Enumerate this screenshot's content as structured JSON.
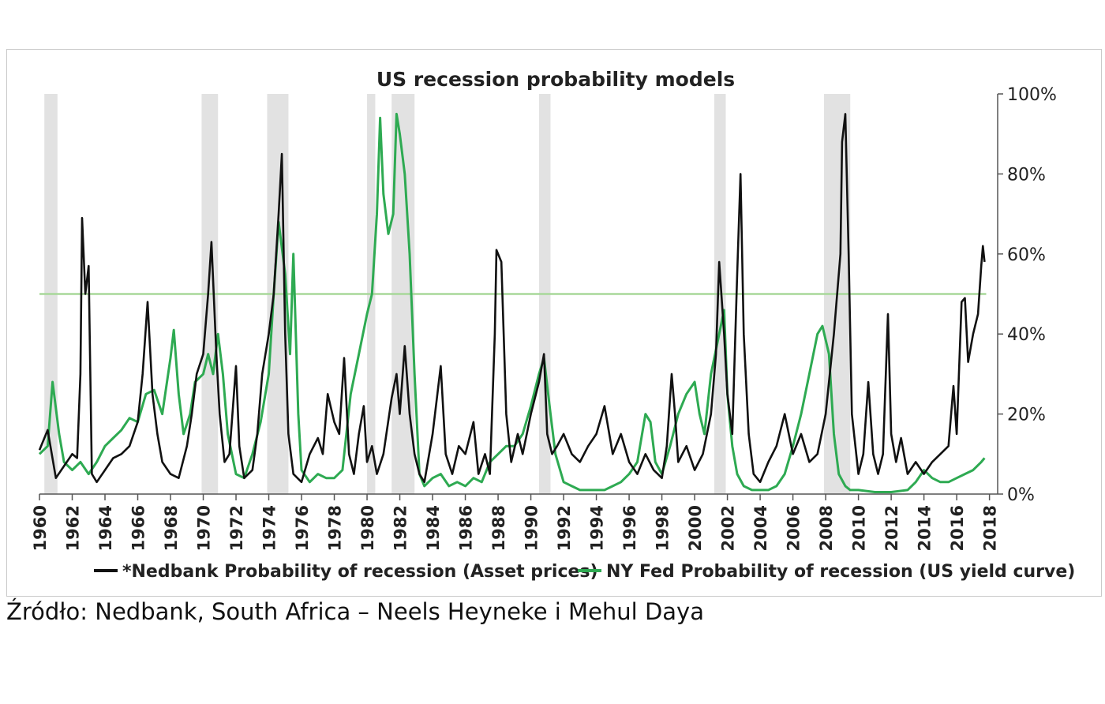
{
  "source_text": "Źródło: Nedbank, South Africa – Neels Heyneke i Mehul Daya",
  "chart_data": {
    "type": "line",
    "title": "US recession probability models",
    "xlabel": "",
    "ylabel": "",
    "xlim": [
      1960,
      2018.5
    ],
    "ylim": [
      0,
      100
    ],
    "y_ticks": [
      0,
      20,
      40,
      60,
      80,
      100
    ],
    "y_tick_labels": [
      "0%",
      "20%",
      "40%",
      "60%",
      "80%",
      "100%"
    ],
    "x_tick_labels": [
      "1960",
      "1962",
      "1964",
      "1966",
      "1968",
      "1970",
      "1972",
      "1974",
      "1976",
      "1978",
      "1980",
      "1982",
      "1984",
      "1986",
      "1988",
      "1990",
      "1992",
      "1994",
      "1996",
      "1998",
      "2000",
      "2002",
      "2004",
      "2006",
      "2008",
      "2010",
      "2012",
      "2014",
      "2016",
      "2018"
    ],
    "threshold": 50,
    "legend_position": "bottom",
    "colors": {
      "nedbank": "#111111",
      "nyfed": "#2eaa52",
      "threshold": "#a8d89a",
      "recession": "#e2e2e2",
      "axis": "#555555"
    },
    "recessions": [
      [
        1960.3,
        1961.1
      ],
      [
        1969.9,
        1970.9
      ],
      [
        1973.9,
        1975.2
      ],
      [
        1980.0,
        1980.5
      ],
      [
        1981.5,
        1982.9
      ],
      [
        1990.5,
        1991.2
      ],
      [
        2001.2,
        2001.9
      ],
      [
        2007.9,
        2009.5
      ]
    ],
    "series": [
      {
        "name": "*Nedbank Probability of recession (Asset prices)",
        "color": "#111111",
        "points": [
          [
            1960.0,
            11
          ],
          [
            1960.5,
            16
          ],
          [
            1961.0,
            4
          ],
          [
            1961.5,
            7
          ],
          [
            1962.0,
            10
          ],
          [
            1962.3,
            9
          ],
          [
            1962.5,
            30
          ],
          [
            1962.6,
            69
          ],
          [
            1962.8,
            50
          ],
          [
            1963.0,
            57
          ],
          [
            1963.2,
            5
          ],
          [
            1963.5,
            3
          ],
          [
            1964.0,
            6
          ],
          [
            1964.5,
            9
          ],
          [
            1965.0,
            10
          ],
          [
            1965.5,
            12
          ],
          [
            1966.0,
            18
          ],
          [
            1966.3,
            30
          ],
          [
            1966.6,
            48
          ],
          [
            1966.9,
            25
          ],
          [
            1967.2,
            15
          ],
          [
            1967.5,
            8
          ],
          [
            1968.0,
            5
          ],
          [
            1968.5,
            4
          ],
          [
            1969.0,
            12
          ],
          [
            1969.3,
            20
          ],
          [
            1969.6,
            30
          ],
          [
            1970.0,
            35
          ],
          [
            1970.3,
            50
          ],
          [
            1970.5,
            63
          ],
          [
            1970.8,
            35
          ],
          [
            1971.0,
            20
          ],
          [
            1971.3,
            8
          ],
          [
            1971.6,
            10
          ],
          [
            1972.0,
            32
          ],
          [
            1972.2,
            12
          ],
          [
            1972.5,
            4
          ],
          [
            1973.0,
            6
          ],
          [
            1973.3,
            15
          ],
          [
            1973.6,
            30
          ],
          [
            1974.0,
            40
          ],
          [
            1974.3,
            50
          ],
          [
            1974.6,
            70
          ],
          [
            1974.8,
            85
          ],
          [
            1975.0,
            40
          ],
          [
            1975.2,
            15
          ],
          [
            1975.5,
            5
          ],
          [
            1976.0,
            3
          ],
          [
            1976.5,
            10
          ],
          [
            1977.0,
            14
          ],
          [
            1977.3,
            10
          ],
          [
            1977.6,
            25
          ],
          [
            1978.0,
            18
          ],
          [
            1978.3,
            15
          ],
          [
            1978.6,
            34
          ],
          [
            1978.9,
            10
          ],
          [
            1979.2,
            5
          ],
          [
            1979.5,
            15
          ],
          [
            1979.8,
            22
          ],
          [
            1980.0,
            8
          ],
          [
            1980.3,
            12
          ],
          [
            1980.6,
            5
          ],
          [
            1981.0,
            10
          ],
          [
            1981.5,
            24
          ],
          [
            1981.8,
            30
          ],
          [
            1982.0,
            20
          ],
          [
            1982.3,
            37
          ],
          [
            1982.6,
            20
          ],
          [
            1982.9,
            10
          ],
          [
            1983.2,
            5
          ],
          [
            1983.5,
            3
          ],
          [
            1984.0,
            15
          ],
          [
            1984.5,
            32
          ],
          [
            1984.8,
            10
          ],
          [
            1985.2,
            5
          ],
          [
            1985.6,
            12
          ],
          [
            1986.0,
            10
          ],
          [
            1986.5,
            18
          ],
          [
            1986.8,
            5
          ],
          [
            1987.2,
            10
          ],
          [
            1987.5,
            5
          ],
          [
            1987.8,
            40
          ],
          [
            1987.9,
            61
          ],
          [
            1988.2,
            58
          ],
          [
            1988.5,
            20
          ],
          [
            1988.8,
            8
          ],
          [
            1989.2,
            15
          ],
          [
            1989.5,
            10
          ],
          [
            1990.0,
            20
          ],
          [
            1990.5,
            28
          ],
          [
            1990.8,
            35
          ],
          [
            1991.0,
            15
          ],
          [
            1991.3,
            10
          ],
          [
            1991.6,
            12
          ],
          [
            1992.0,
            15
          ],
          [
            1992.5,
            10
          ],
          [
            1993.0,
            8
          ],
          [
            1993.5,
            12
          ],
          [
            1994.0,
            15
          ],
          [
            1994.5,
            22
          ],
          [
            1995.0,
            10
          ],
          [
            1995.5,
            15
          ],
          [
            1996.0,
            8
          ],
          [
            1996.5,
            5
          ],
          [
            1997.0,
            10
          ],
          [
            1997.5,
            6
          ],
          [
            1998.0,
            4
          ],
          [
            1998.3,
            12
          ],
          [
            1998.6,
            30
          ],
          [
            1998.8,
            20
          ],
          [
            1999.0,
            8
          ],
          [
            1999.5,
            12
          ],
          [
            2000.0,
            6
          ],
          [
            2000.5,
            10
          ],
          [
            2001.0,
            20
          ],
          [
            2001.3,
            35
          ],
          [
            2001.5,
            58
          ],
          [
            2001.8,
            40
          ],
          [
            2002.0,
            25
          ],
          [
            2002.3,
            15
          ],
          [
            2002.6,
            55
          ],
          [
            2002.8,
            80
          ],
          [
            2003.0,
            40
          ],
          [
            2003.3,
            15
          ],
          [
            2003.6,
            5
          ],
          [
            2004.0,
            3
          ],
          [
            2004.5,
            8
          ],
          [
            2005.0,
            12
          ],
          [
            2005.5,
            20
          ],
          [
            2006.0,
            10
          ],
          [
            2006.5,
            15
          ],
          [
            2007.0,
            8
          ],
          [
            2007.5,
            10
          ],
          [
            2008.0,
            20
          ],
          [
            2008.5,
            40
          ],
          [
            2008.9,
            60
          ],
          [
            2009.0,
            88
          ],
          [
            2009.2,
            95
          ],
          [
            2009.4,
            60
          ],
          [
            2009.6,
            20
          ],
          [
            2010.0,
            5
          ],
          [
            2010.3,
            10
          ],
          [
            2010.6,
            28
          ],
          [
            2010.9,
            10
          ],
          [
            2011.2,
            5
          ],
          [
            2011.5,
            10
          ],
          [
            2011.8,
            45
          ],
          [
            2012.0,
            15
          ],
          [
            2012.3,
            8
          ],
          [
            2012.6,
            14
          ],
          [
            2013.0,
            5
          ],
          [
            2013.5,
            8
          ],
          [
            2014.0,
            5
          ],
          [
            2014.5,
            8
          ],
          [
            2015.0,
            10
          ],
          [
            2015.5,
            12
          ],
          [
            2015.8,
            27
          ],
          [
            2016.0,
            15
          ],
          [
            2016.3,
            48
          ],
          [
            2016.5,
            49
          ],
          [
            2016.7,
            33
          ],
          [
            2017.0,
            40
          ],
          [
            2017.3,
            45
          ],
          [
            2017.5,
            57
          ],
          [
            2017.6,
            62
          ],
          [
            2017.7,
            58
          ]
        ]
      },
      {
        "name": "NY Fed Probability of recession (US yield curve)",
        "color": "#2eaa52",
        "points": [
          [
            1960.0,
            10
          ],
          [
            1960.5,
            12
          ],
          [
            1960.8,
            28
          ],
          [
            1961.2,
            15
          ],
          [
            1961.5,
            8
          ],
          [
            1962.0,
            6
          ],
          [
            1962.5,
            8
          ],
          [
            1963.0,
            5
          ],
          [
            1963.5,
            8
          ],
          [
            1964.0,
            12
          ],
          [
            1964.5,
            14
          ],
          [
            1965.0,
            16
          ],
          [
            1965.5,
            19
          ],
          [
            1966.0,
            18
          ],
          [
            1966.5,
            25
          ],
          [
            1967.0,
            26
          ],
          [
            1967.5,
            20
          ],
          [
            1968.0,
            34
          ],
          [
            1968.2,
            41
          ],
          [
            1968.5,
            25
          ],
          [
            1968.8,
            15
          ],
          [
            1969.2,
            20
          ],
          [
            1969.5,
            28
          ],
          [
            1970.0,
            30
          ],
          [
            1970.3,
            35
          ],
          [
            1970.6,
            30
          ],
          [
            1970.9,
            40
          ],
          [
            1971.2,
            30
          ],
          [
            1971.5,
            15
          ],
          [
            1972.0,
            5
          ],
          [
            1972.5,
            4
          ],
          [
            1973.0,
            10
          ],
          [
            1973.5,
            18
          ],
          [
            1974.0,
            30
          ],
          [
            1974.3,
            50
          ],
          [
            1974.6,
            68
          ],
          [
            1975.0,
            55
          ],
          [
            1975.3,
            35
          ],
          [
            1975.5,
            60
          ],
          [
            1975.8,
            20
          ],
          [
            1976.0,
            6
          ],
          [
            1976.5,
            3
          ],
          [
            1977.0,
            5
          ],
          [
            1977.5,
            4
          ],
          [
            1978.0,
            4
          ],
          [
            1978.5,
            6
          ],
          [
            1979.0,
            25
          ],
          [
            1979.5,
            35
          ],
          [
            1980.0,
            45
          ],
          [
            1980.3,
            50
          ],
          [
            1980.6,
            70
          ],
          [
            1980.8,
            94
          ],
          [
            1981.0,
            75
          ],
          [
            1981.3,
            65
          ],
          [
            1981.6,
            70
          ],
          [
            1981.8,
            95
          ],
          [
            1982.0,
            90
          ],
          [
            1982.3,
            80
          ],
          [
            1982.6,
            60
          ],
          [
            1982.9,
            30
          ],
          [
            1983.2,
            5
          ],
          [
            1983.5,
            2
          ],
          [
            1984.0,
            4
          ],
          [
            1984.5,
            5
          ],
          [
            1985.0,
            2
          ],
          [
            1985.5,
            3
          ],
          [
            1986.0,
            2
          ],
          [
            1986.5,
            4
          ],
          [
            1987.0,
            3
          ],
          [
            1987.5,
            8
          ],
          [
            1988.0,
            10
          ],
          [
            1988.5,
            12
          ],
          [
            1989.0,
            12
          ],
          [
            1989.5,
            15
          ],
          [
            1990.0,
            22
          ],
          [
            1990.5,
            30
          ],
          [
            1990.8,
            34
          ],
          [
            1991.2,
            20
          ],
          [
            1991.5,
            10
          ],
          [
            1992.0,
            3
          ],
          [
            1992.5,
            2
          ],
          [
            1993.0,
            1
          ],
          [
            1993.5,
            1
          ],
          [
            1994.0,
            1
          ],
          [
            1994.5,
            1
          ],
          [
            1995.0,
            2
          ],
          [
            1995.5,
            3
          ],
          [
            1996.0,
            5
          ],
          [
            1996.5,
            8
          ],
          [
            1997.0,
            20
          ],
          [
            1997.3,
            18
          ],
          [
            1997.6,
            8
          ],
          [
            1998.0,
            5
          ],
          [
            1998.5,
            12
          ],
          [
            1999.0,
            20
          ],
          [
            1999.5,
            25
          ],
          [
            2000.0,
            28
          ],
          [
            2000.3,
            20
          ],
          [
            2000.6,
            15
          ],
          [
            2001.0,
            30
          ],
          [
            2001.5,
            40
          ],
          [
            2001.8,
            46
          ],
          [
            2002.0,
            25
          ],
          [
            2002.3,
            12
          ],
          [
            2002.6,
            5
          ],
          [
            2003.0,
            2
          ],
          [
            2003.5,
            1
          ],
          [
            2004.0,
            1
          ],
          [
            2004.5,
            1
          ],
          [
            2005.0,
            2
          ],
          [
            2005.5,
            5
          ],
          [
            2006.0,
            12
          ],
          [
            2006.5,
            20
          ],
          [
            2007.0,
            30
          ],
          [
            2007.5,
            40
          ],
          [
            2007.8,
            42
          ],
          [
            2008.2,
            35
          ],
          [
            2008.5,
            15
          ],
          [
            2008.8,
            5
          ],
          [
            2009.2,
            2
          ],
          [
            2009.5,
            1
          ],
          [
            2010.0,
            1
          ],
          [
            2011.0,
            0.5
          ],
          [
            2012.0,
            0.5
          ],
          [
            2013.0,
            1
          ],
          [
            2013.5,
            3
          ],
          [
            2014.0,
            6
          ],
          [
            2014.5,
            4
          ],
          [
            2015.0,
            3
          ],
          [
            2015.5,
            3
          ],
          [
            2016.0,
            4
          ],
          [
            2016.5,
            5
          ],
          [
            2017.0,
            6
          ],
          [
            2017.5,
            8
          ],
          [
            2017.7,
            9
          ]
        ]
      }
    ]
  }
}
